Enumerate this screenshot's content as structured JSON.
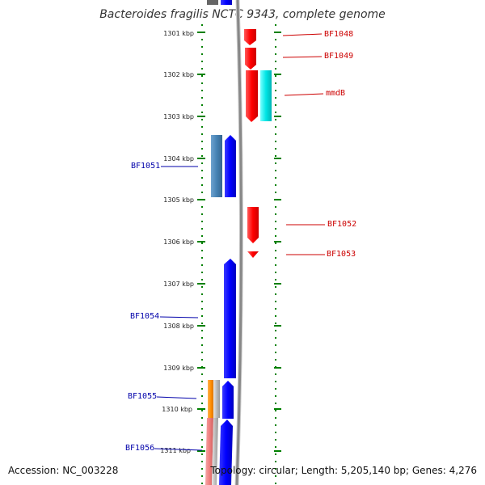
{
  "title": "Bacteroides fragilis NCTC 9343, complete genome",
  "accession_label": "Accession: NC_003228",
  "topology_label": "Topology: circular; Length: 5,205,140 bp; Genes: 4,276",
  "scale_ticks": [
    "1301 kbp",
    "1302 kbp",
    "1303 kbp",
    "1304 kbp",
    "1305 kbp",
    "1306 kbp",
    "1307 kbp",
    "1308 kbp",
    "1309 kbp",
    "1310 kbp",
    "1311 kbp"
  ],
  "colors": {
    "forward_cds": "#ff0000",
    "reverse_cds": "#0000ff",
    "forward_feature": "#00e5e5",
    "reverse_feature_steel": "#4682b4",
    "reverse_feature_orange": "#ff8c00",
    "reverse_feature_pink": "#f08080",
    "tick": "#008000",
    "backbone": "#888888"
  },
  "gene_labels": [
    {
      "name": "BF1048",
      "strand": "forward"
    },
    {
      "name": "BF1049",
      "strand": "forward"
    },
    {
      "name": "mmdB",
      "strand": "forward"
    },
    {
      "name": "BF1051",
      "strand": "reverse"
    },
    {
      "name": "BF1052",
      "strand": "forward"
    },
    {
      "name": "BF1053",
      "strand": "forward"
    },
    {
      "name": "BF1054",
      "strand": "reverse"
    },
    {
      "name": "BF1055",
      "strand": "reverse"
    },
    {
      "name": "BF1056",
      "strand": "reverse"
    }
  ]
}
